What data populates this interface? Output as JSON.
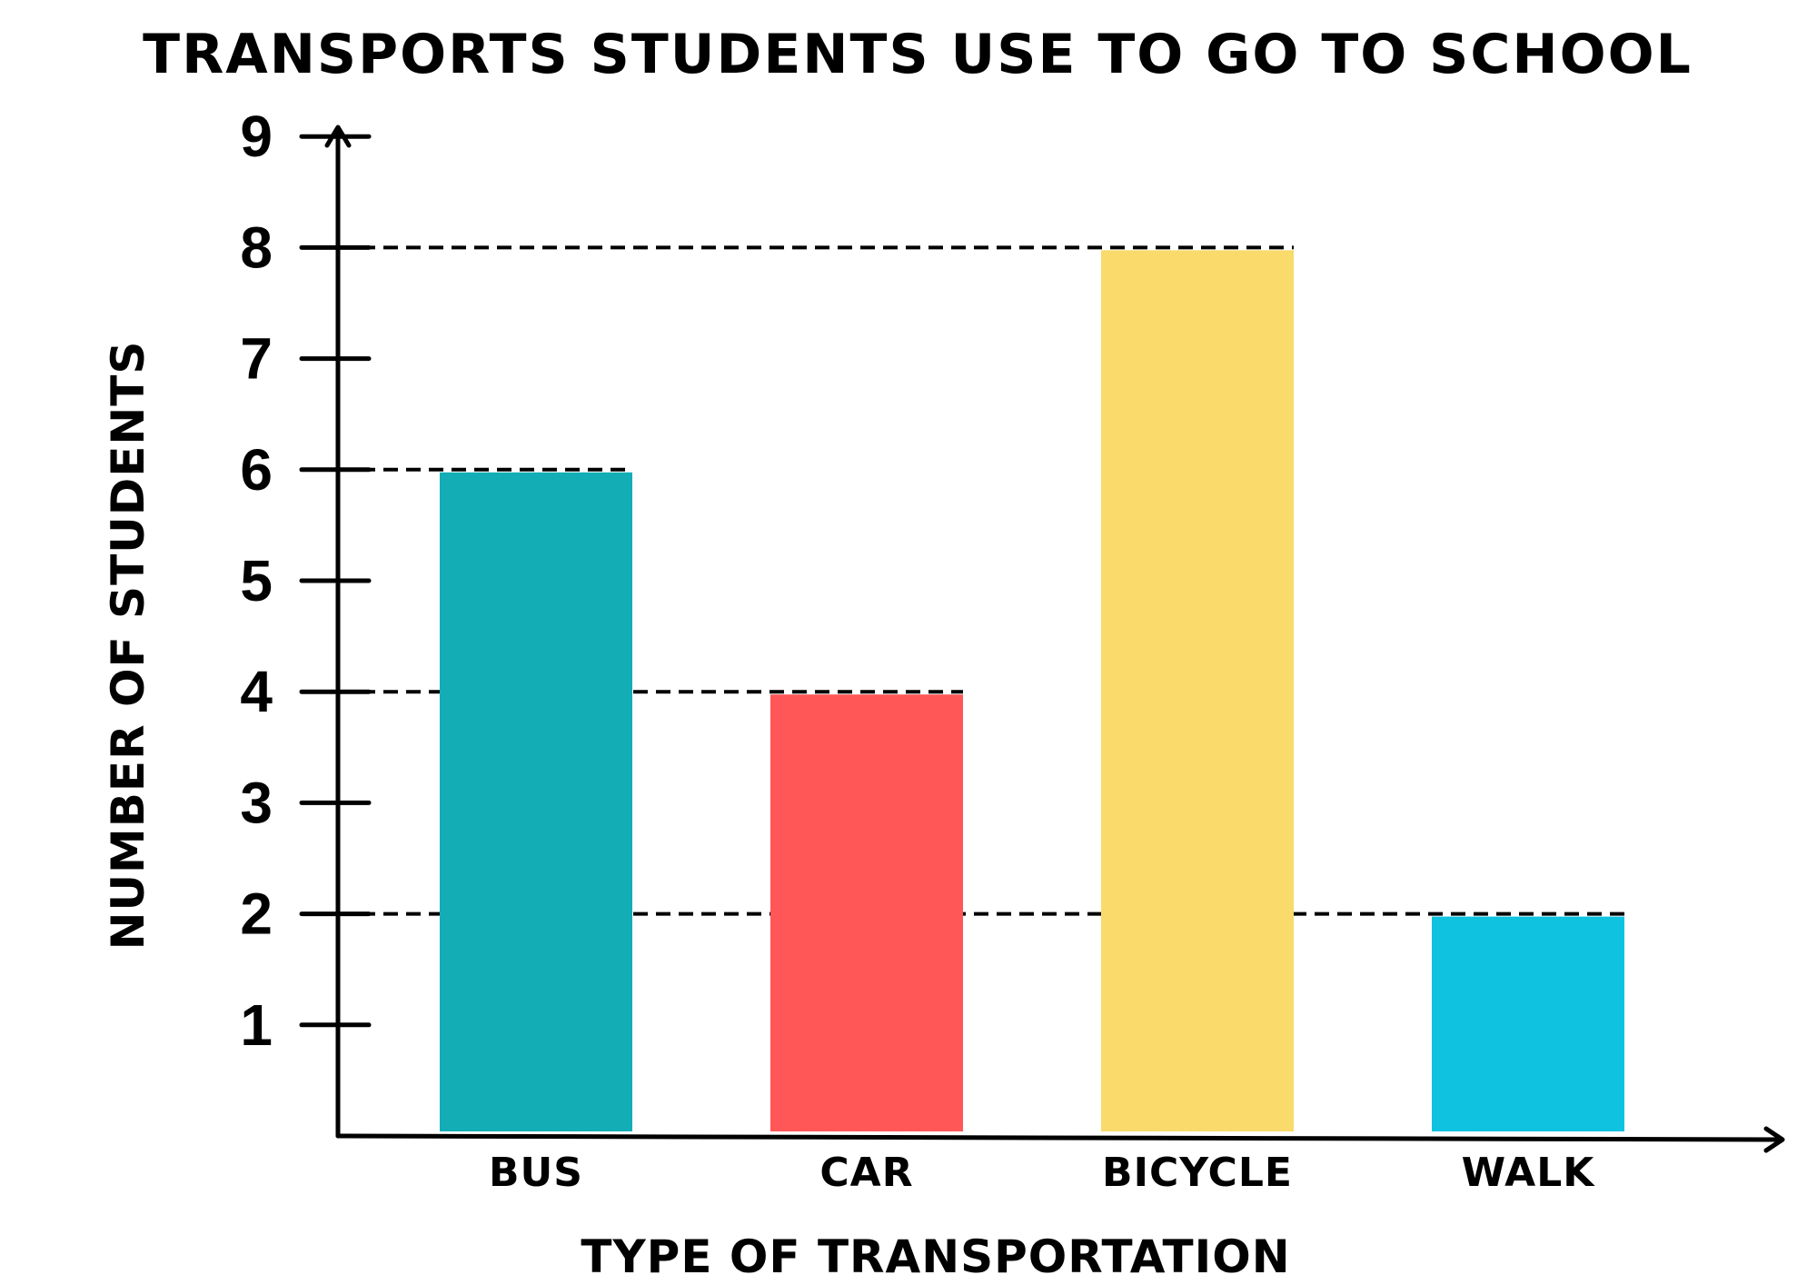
{
  "chart_data": {
    "type": "bar",
    "title": "TRANSPORTS STUDENTS USE TO GO TO SCHOOL",
    "xlabel": "TYPE OF TRANSPORTATION",
    "ylabel": "NUMBER OF STUDENTS",
    "categories": [
      "BUS",
      "CAR",
      "BICYCLE",
      "WALK"
    ],
    "values": [
      6,
      4,
      8,
      2
    ],
    "colors": [
      "#13AEB5",
      "#FF5757",
      "#F9DA6A",
      "#0EC2E0"
    ],
    "ylim": [
      0,
      9
    ],
    "yticks": [
      "1",
      "2",
      "3",
      "4",
      "5",
      "6",
      "7",
      "8",
      "9"
    ],
    "dashed_reference_lines": true,
    "legend": "none",
    "grid": false
  }
}
